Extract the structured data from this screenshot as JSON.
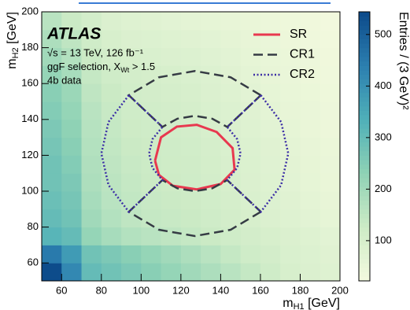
{
  "chart_data": {
    "type": "heatmap",
    "experiment": "ATLAS",
    "lumi": "√s = 13 TeV, 126 fb⁻¹",
    "selection": [
      "ggF selection, X",
      "Wt",
      " > 1.5"
    ],
    "sample": "4b data",
    "xlabel": [
      "m",
      "H1",
      " [GeV]"
    ],
    "ylabel": [
      "m",
      "H2",
      " [GeV]"
    ],
    "zlabel": "Entries / (3 GeV)²",
    "xlim": [
      50,
      200
    ],
    "ylim": [
      50,
      200
    ],
    "xticks": [
      60,
      80,
      100,
      120,
      140,
      160,
      180,
      200
    ],
    "yticks": [
      60,
      80,
      100,
      120,
      140,
      160,
      180,
      200
    ],
    "zlim": [
      22,
      544
    ],
    "zticks": [
      100,
      200,
      300,
      400,
      500
    ],
    "colorscale": [
      "#f4fadf",
      "#cdebc6",
      "#8fd2b5",
      "#4fb0b8",
      "#2c7fb0",
      "#0c4a8a"
    ],
    "xbins": [
      50,
      60,
      70,
      80,
      90,
      100,
      110,
      120,
      130,
      140,
      150,
      160,
      170,
      180,
      190,
      200
    ],
    "ybins": [
      50,
      60,
      70,
      80,
      90,
      100,
      110,
      120,
      130,
      140,
      150,
      160,
      170,
      180,
      190,
      200
    ],
    "z": [
      [
        540,
        420,
        300,
        280,
        260,
        240,
        220,
        200,
        180,
        160,
        140,
        120,
        100,
        90,
        80
      ],
      [
        450,
        380,
        280,
        260,
        240,
        220,
        200,
        180,
        160,
        140,
        120,
        110,
        95,
        85,
        75
      ],
      [
        320,
        300,
        220,
        190,
        170,
        160,
        150,
        140,
        130,
        120,
        110,
        100,
        90,
        80,
        70
      ],
      [
        300,
        280,
        200,
        170,
        150,
        140,
        135,
        130,
        120,
        110,
        100,
        90,
        80,
        70,
        60
      ],
      [
        290,
        270,
        190,
        160,
        145,
        135,
        130,
        125,
        115,
        105,
        95,
        85,
        75,
        65,
        55
      ],
      [
        280,
        260,
        180,
        155,
        140,
        130,
        125,
        120,
        110,
        100,
        90,
        80,
        70,
        60,
        50
      ],
      [
        280,
        250,
        175,
        150,
        135,
        128,
        122,
        118,
        108,
        98,
        88,
        78,
        68,
        58,
        48
      ],
      [
        270,
        240,
        170,
        145,
        130,
        125,
        120,
        115,
        105,
        95,
        85,
        75,
        65,
        55,
        45
      ],
      [
        260,
        230,
        165,
        140,
        125,
        120,
        115,
        110,
        100,
        90,
        80,
        70,
        60,
        50,
        42
      ],
      [
        250,
        220,
        160,
        135,
        120,
        115,
        110,
        105,
        95,
        85,
        75,
        65,
        55,
        48,
        40
      ],
      [
        240,
        210,
        150,
        130,
        115,
        110,
        105,
        100,
        90,
        80,
        70,
        60,
        52,
        45,
        38
      ],
      [
        220,
        190,
        140,
        120,
        110,
        105,
        100,
        95,
        85,
        75,
        65,
        55,
        48,
        42,
        35
      ],
      [
        200,
        170,
        130,
        110,
        100,
        95,
        90,
        85,
        78,
        70,
        60,
        52,
        45,
        40,
        33
      ],
      [
        180,
        150,
        120,
        100,
        90,
        85,
        80,
        75,
        70,
        62,
        55,
        48,
        42,
        36,
        30
      ],
      [
        160,
        130,
        110,
        90,
        80,
        75,
        70,
        65,
        60,
        55,
        50,
        44,
        38,
        33,
        28
      ]
    ],
    "series": [
      {
        "name": "SR",
        "color": "#e8384f",
        "dash": "solid",
        "x": [
          107,
          110,
          118,
          128,
          138,
          146,
          147,
          140,
          128,
          116,
          109,
          107
        ],
        "y": [
          117,
          130,
          136,
          137,
          133,
          124,
          112,
          104,
          101,
          103,
          109,
          117
        ]
      },
      {
        "name": "CR1",
        "color": "#353b44",
        "dash": "dashed",
        "x": [
          160.2,
          145.0,
          127,
          109.0,
          93.8,
          110.7,
          118.2,
          127,
          135.8,
          143.3,
          160.2,
          null,
          160.2,
          145.0,
          127,
          109.0,
          93.8,
          110.7,
          118.2,
          127,
          135.8,
          143.3,
          160.2
        ],
        "y": [
          153.5,
          163.5,
          167,
          163.5,
          153.5,
          135.8,
          140.4,
          142,
          140.4,
          135.8,
          153.5,
          null,
          88.5,
          78.5,
          75,
          78.5,
          88.5,
          106.2,
          101.6,
          100,
          101.6,
          106.2,
          88.5
        ]
      },
      {
        "name": "CR2",
        "color": "#3d2fa6",
        "dash": "dotted",
        "x": [
          93.8,
          83.6,
          80,
          83.6,
          93.8,
          110.7,
          105.7,
          104,
          105.7,
          110.7,
          93.8,
          null,
          160.2,
          170.4,
          174,
          170.4,
          160.2,
          143.3,
          148.3,
          150,
          148.3,
          143.3,
          160.2
        ],
        "y": [
          153.5,
          138.6,
          121,
          103.4,
          88.5,
          106.2,
          113.0,
          121,
          129.0,
          135.8,
          153.5,
          null,
          153.5,
          138.6,
          121,
          103.4,
          88.5,
          106.2,
          113.0,
          121,
          129.0,
          135.8,
          153.5
        ]
      }
    ],
    "legend": "upper right"
  }
}
